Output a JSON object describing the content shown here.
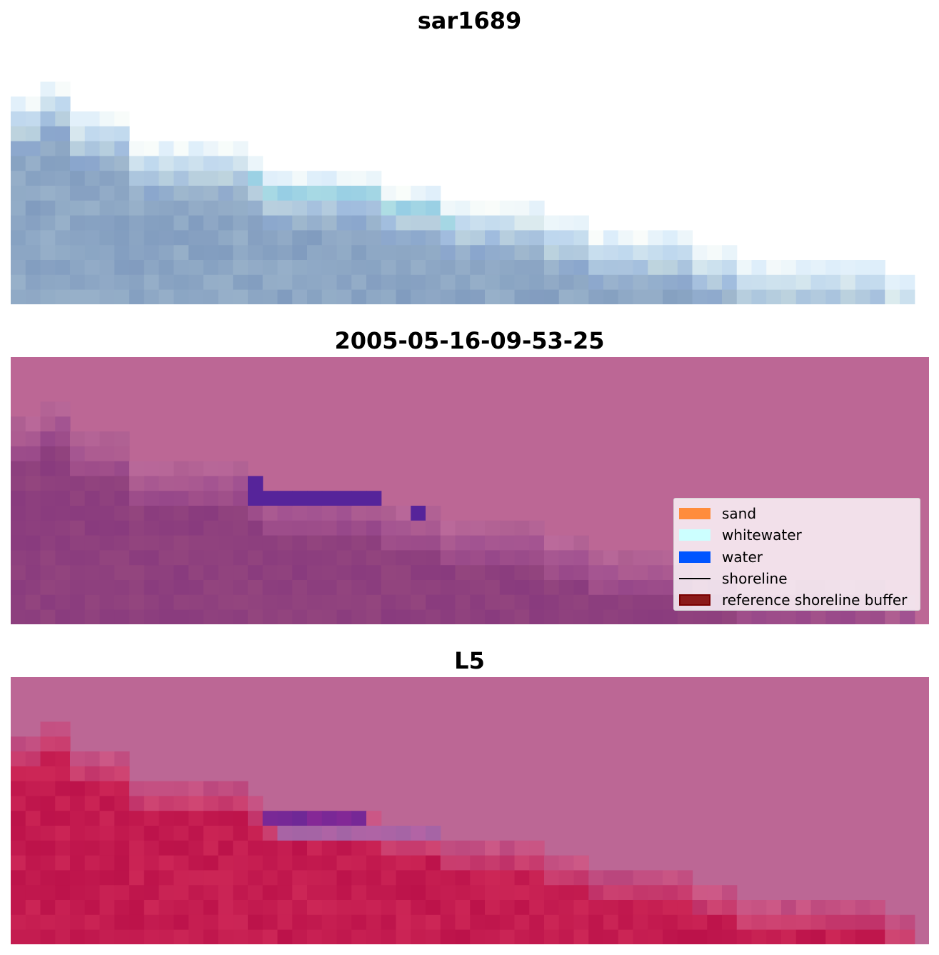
{
  "panels": [
    {
      "title": "sar1689",
      "layer": "SAR RGB image"
    },
    {
      "title": "2005-05-16-09-53-25",
      "layer": "classified image overlay"
    },
    {
      "title": "L5",
      "layer": "index image overlay"
    }
  ],
  "legend": {
    "items": [
      {
        "label": "sand",
        "color": "#ff8c3c",
        "kind": "patch"
      },
      {
        "label": "whitewater",
        "color": "#ccffff",
        "kind": "patch"
      },
      {
        "label": "water",
        "color": "#0055ff",
        "kind": "patch"
      },
      {
        "label": "shoreline",
        "color": "#000000",
        "kind": "line"
      },
      {
        "label": "reference shoreline buffer",
        "color": "#8b1a1a",
        "kind": "patch",
        "edge": "#7a0000"
      }
    ]
  },
  "colors": {
    "buffer_overlay": "#bc6795",
    "water_class": "#56249a",
    "land_dark": "#8b4079",
    "index_red": "#c01d48"
  }
}
